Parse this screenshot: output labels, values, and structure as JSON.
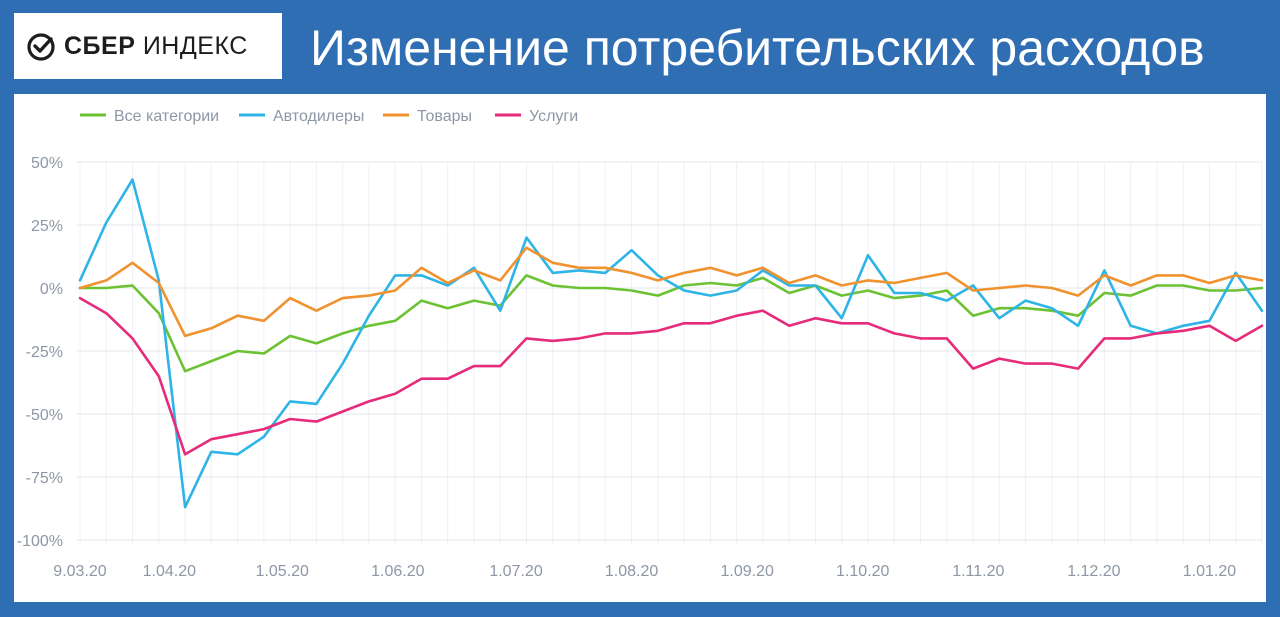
{
  "header": {
    "logo_bold": "СБЕР",
    "logo_light": "ИНДЕКС",
    "title": "Изменение потребительских расходов"
  },
  "chart_data": {
    "type": "line",
    "title": "Изменение потребительских расходов",
    "xlabel": "",
    "ylabel": "",
    "ylim": [
      -100,
      50
    ],
    "yticks": [
      50,
      25,
      0,
      -25,
      -50,
      -75,
      -100
    ],
    "ytick_labels": [
      "50%",
      "25%",
      "0%",
      "-25%",
      "-50%",
      "-75%",
      "-100%"
    ],
    "xtick_labels": [
      "9.03.20",
      "1.04.20",
      "1.05.20",
      "1.06.20",
      "1.07.20",
      "1.08.20",
      "1.09.20",
      "1.10.20",
      "1.11.20",
      "1.12.20",
      "1.01.20"
    ],
    "xtick_positions": [
      0,
      3.4,
      7.7,
      12.1,
      16.6,
      21.0,
      25.4,
      29.8,
      34.2,
      38.6,
      43.0
    ],
    "grid": true,
    "legend": "top-left",
    "x": [
      0,
      1,
      2,
      3,
      4,
      5,
      6,
      7,
      8,
      9,
      10,
      11,
      12,
      13,
      14,
      15,
      16,
      17,
      18,
      19,
      20,
      21,
      22,
      23,
      24,
      25,
      26,
      27,
      28,
      29,
      30,
      31,
      32,
      33,
      34,
      35,
      36,
      37,
      38,
      39,
      40,
      41,
      42,
      43,
      44,
      45
    ],
    "series": [
      {
        "name": "Все категории",
        "color": "#6cc233",
        "values": [
          0,
          0,
          1,
          -10,
          -33,
          -29,
          -25,
          -26,
          -19,
          -22,
          -18,
          -15,
          -13,
          -5,
          -8,
          -5,
          -7,
          5,
          1,
          0,
          0,
          -1,
          -3,
          1,
          2,
          1,
          4,
          -2,
          1,
          -3,
          -1,
          -4,
          -3,
          -1,
          -11,
          -8,
          -8,
          -9,
          -11,
          -2,
          -3,
          1,
          1,
          -1,
          -1,
          0
        ]
      },
      {
        "name": "Автодилеры",
        "color": "#2eb4e6",
        "values": [
          3,
          26,
          43,
          3,
          -87,
          -65,
          -66,
          -59,
          -45,
          -46,
          -30,
          -11,
          5,
          5,
          1,
          8,
          -9,
          20,
          6,
          7,
          6,
          15,
          5,
          -1,
          -3,
          -1,
          7,
          1,
          1,
          -12,
          13,
          -2,
          -2,
          -5,
          1,
          -12,
          -5,
          -8,
          -15,
          7,
          -15,
          -18,
          -15,
          -13,
          6,
          -9
        ]
      },
      {
        "name": "Товары",
        "color": "#f0922e",
        "values": [
          0,
          3,
          10,
          2,
          -19,
          -16,
          -11,
          -13,
          -4,
          -9,
          -4,
          -3,
          -1,
          8,
          2,
          7,
          3,
          16,
          10,
          8,
          8,
          6,
          3,
          6,
          8,
          5,
          8,
          2,
          5,
          1,
          3,
          2,
          4,
          6,
          -1,
          0,
          1,
          0,
          -3,
          5,
          1,
          5,
          5,
          2,
          5,
          3
        ]
      },
      {
        "name": "Услуги",
        "color": "#e62b7a",
        "values": [
          -4,
          -10,
          -20,
          -35,
          -66,
          -60,
          -58,
          -56,
          -52,
          -53,
          -49,
          -45,
          -42,
          -36,
          -36,
          -31,
          -31,
          -20,
          -21,
          -20,
          -18,
          -18,
          -17,
          -14,
          -14,
          -11,
          -9,
          -15,
          -12,
          -14,
          -14,
          -18,
          -20,
          -20,
          -32,
          -28,
          -30,
          -30,
          -32,
          -20,
          -20,
          -18,
          -17,
          -15,
          -21,
          -15
        ]
      }
    ]
  }
}
